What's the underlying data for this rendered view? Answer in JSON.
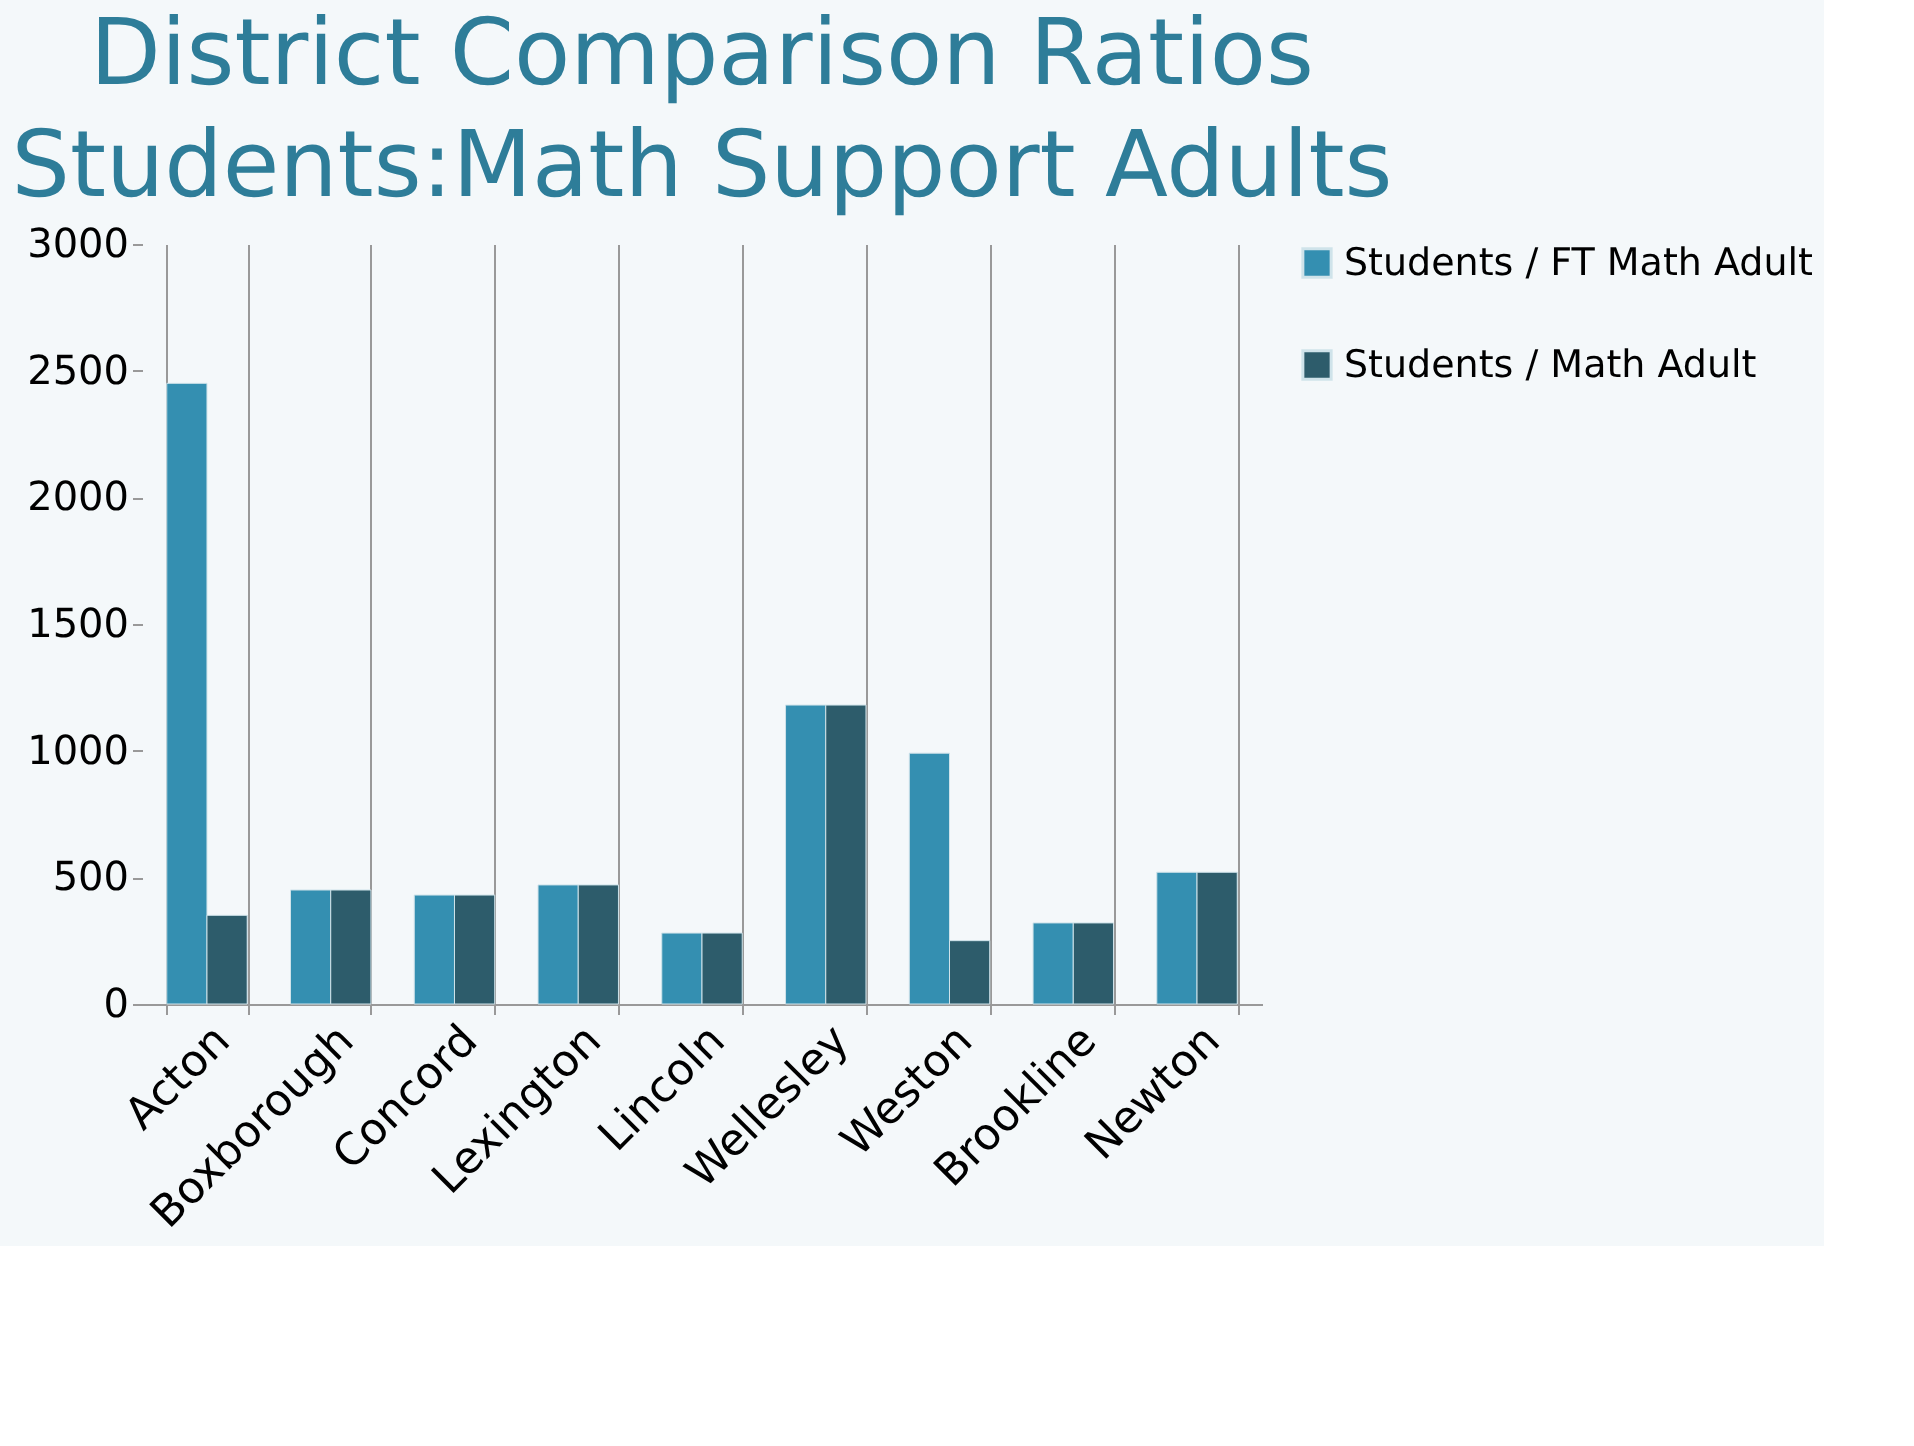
{
  "chart_data": {
    "type": "bar",
    "title": "District Comparison Ratios\nStudents:Math Support Adults",
    "categories": [
      "Acton",
      "Boxborough",
      "Concord",
      "Lexington",
      "Lincoln",
      "Wellesley",
      "Weston",
      "Brookline",
      "Newton"
    ],
    "series": [
      {
        "name": "Students / FT Math Adult",
        "color": "#348fb1",
        "values": [
          2450,
          450,
          430,
          470,
          280,
          1180,
          990,
          320,
          520
        ]
      },
      {
        "name": "Students / Math Adult",
        "color": "#2d5c6b",
        "values": [
          350,
          450,
          430,
          470,
          280,
          1180,
          250,
          320,
          520
        ]
      }
    ],
    "ylim": [
      0,
      3000
    ],
    "yticks": [
      0,
      500,
      1000,
      1500,
      2000,
      2500,
      3000
    ],
    "grid": "x",
    "legend": "right"
  }
}
